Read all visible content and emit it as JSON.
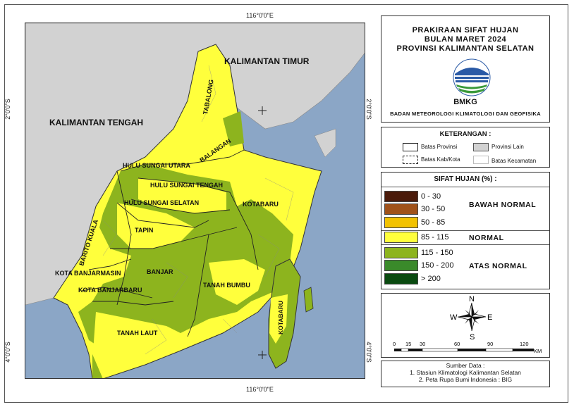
{
  "coords": {
    "top_lon": "116°0'0\"E",
    "bottom_lon": "116°0'0\"E",
    "lat_2": "2°0'0\"S",
    "lat_4": "4°0'0\"S"
  },
  "title": {
    "line1": "PRAKIRAAN SIFAT HUJAN",
    "line2": "BULAN MARET 2024",
    "line3": "PROVINSI KALIMANTAN SELATAN",
    "logo_text": "BMKG",
    "agency": "BADAN METEOROLOGI KLIMATOLOGI DAN GEOFISIKA"
  },
  "keterangan": {
    "heading": "KETERANGAN :",
    "items": [
      "Batas Provinsi",
      "Provinsi Lain",
      "Batas Kab/Kota",
      "Batas Kecamatan"
    ]
  },
  "legend": {
    "heading": "SIFAT HUJAN (%) :",
    "classes": [
      {
        "range": "0 - 30",
        "color": "#4a1a0a"
      },
      {
        "range": "30 - 50",
        "color": "#a0521a"
      },
      {
        "range": "50 - 85",
        "color": "#f2c200"
      },
      {
        "range": "85 - 115",
        "color": "#ffff3c"
      },
      {
        "range": "115 - 150",
        "color": "#8db41e"
      },
      {
        "range": "150 - 200",
        "color": "#3a8a2a"
      },
      {
        "range": "> 200",
        "color": "#0a4a10"
      }
    ],
    "categories": [
      "BAWAH NORMAL",
      "NORMAL",
      "ATAS NORMAL"
    ]
  },
  "compass": {
    "n": "N",
    "s": "S",
    "e": "E",
    "w": "W"
  },
  "scale": {
    "ticks": [
      "0",
      "15",
      "30",
      "60",
      "90",
      "120"
    ],
    "unit": "KM"
  },
  "source": {
    "heading": "Sumber Data :",
    "lines": [
      "1. Stasiun Klimatologi Kalimantan Selatan",
      "2. Peta Rupa Bumi Indonesia : BIG"
    ]
  },
  "map_labels": {
    "kaltim": "KALIMANTAN TIMUR",
    "kalteng": "KALIMANTAN TENGAH",
    "tabalong": "TABALONG",
    "balangan": "BALANGAN",
    "hsu": "HULU SUNGAI UTARA",
    "hst": "HULU SUNGAI TENGAH",
    "hss": "HULU SUNGAI SELATAN",
    "kotabaru": "KOTABARU",
    "kotabaru2": "KOTABARU",
    "tapin": "TAPIN",
    "batola": "BARITO KUALA",
    "banjarmasin": "KOTA BANJARMASIN",
    "banjar": "BANJAR",
    "banjarbaru": "KOTA BANJARBARU",
    "tanbu": "TANAH BUMBU",
    "tala": "TANAH LAUT"
  },
  "colors": {
    "sea": "#8ba6c6",
    "other_province": "#d2d2d2",
    "normal": "#ffff3c",
    "above_normal": "#8db41e"
  }
}
